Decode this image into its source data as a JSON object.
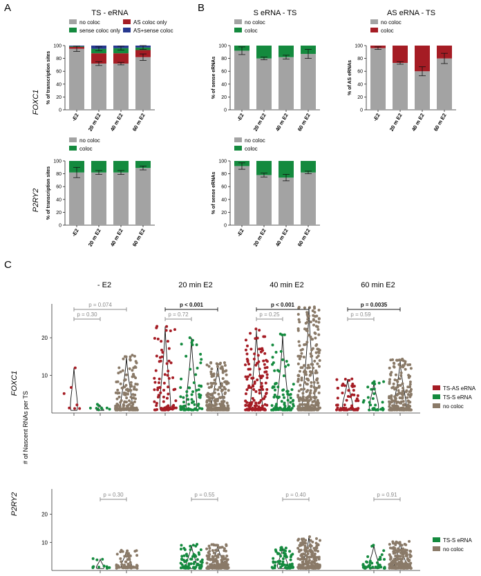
{
  "panel_letters": {
    "a": "A",
    "b": "B",
    "c": "C"
  },
  "gene_labels": {
    "foxc1": "FOXC1",
    "p2ry2": "P2RY2"
  },
  "colors": {
    "no_coloc": "#a3a3a3",
    "as_coloc": "#a51c24",
    "sense_coloc": "#148a3e",
    "as_sense_coloc": "#26388f",
    "c_no_coloc": "#8a7a68"
  },
  "chart_data": [
    {
      "id": "a1",
      "type": "bar",
      "stacked": true,
      "title": "TS - eRNA",
      "categories": [
        "-E2",
        "20 m E2",
        "40 m E2",
        "60 m E2"
      ],
      "ylabel": "% of transcription sites",
      "ylim": [
        0,
        100
      ],
      "yticks": [
        0,
        20,
        40,
        60,
        80,
        100
      ],
      "legend": [
        "no coloc",
        "AS coloc only",
        "sense coloc only",
        "AS+sense coloc"
      ],
      "series": [
        {
          "name": "no coloc",
          "color": "#a3a3a3",
          "values": [
            95,
            72,
            72,
            82
          ],
          "err": [
            4,
            3,
            2,
            5
          ]
        },
        {
          "name": "AS coloc only",
          "color": "#a51c24",
          "values": [
            3,
            16,
            16,
            11
          ],
          "err": [
            null,
            null,
            null,
            null
          ]
        },
        {
          "name": "sense coloc only",
          "color": "#148a3e",
          "values": [
            1,
            7,
            8,
            4
          ],
          "err": [
            null,
            3,
            3,
            3
          ]
        },
        {
          "name": "AS+sense coloc",
          "color": "#26388f",
          "values": [
            1,
            5,
            4,
            3
          ],
          "err": [
            null,
            null,
            null,
            null
          ]
        }
      ]
    },
    {
      "id": "a2",
      "type": "bar",
      "stacked": true,
      "title": "",
      "categories": [
        "-E2",
        "20 m E2",
        "40 m E2",
        "60 m E2"
      ],
      "ylabel": "% of transcription sites",
      "ylim": [
        0,
        100
      ],
      "yticks": [
        0,
        20,
        40,
        60,
        80,
        100
      ],
      "legend": [
        "no coloc",
        "coloc"
      ],
      "series": [
        {
          "name": "no coloc",
          "color": "#a3a3a3",
          "values": [
            82,
            82,
            82,
            89
          ],
          "err": [
            8,
            3,
            3,
            3
          ]
        },
        {
          "name": "coloc",
          "color": "#148a3e",
          "values": [
            18,
            18,
            18,
            11
          ],
          "err": [
            null,
            null,
            null,
            null
          ]
        }
      ]
    },
    {
      "id": "b1",
      "type": "bar",
      "stacked": true,
      "title": "S eRNA -  TS",
      "categories": [
        "-E2",
        "20 m E2",
        "40 m E2",
        "60 m E2"
      ],
      "ylabel": "% of sense eRNAs",
      "ylim": [
        0,
        100
      ],
      "yticks": [
        0,
        20,
        40,
        60,
        80,
        100
      ],
      "legend": [
        "no coloc",
        "coloc"
      ],
      "series": [
        {
          "name": "no coloc",
          "color": "#a3a3a3",
          "values": [
            92,
            80,
            82,
            87
          ],
          "err": [
            6,
            2,
            3,
            7
          ]
        },
        {
          "name": "coloc",
          "color": "#148a3e",
          "values": [
            8,
            20,
            18,
            13
          ],
          "err": [
            null,
            null,
            null,
            null
          ]
        }
      ]
    },
    {
      "id": "b2",
      "type": "bar",
      "stacked": true,
      "title": "AS eRNA -  TS",
      "categories": [
        "-E2",
        "20 m E2",
        "40 m E2",
        "60 m E2"
      ],
      "ylabel": "% of AS eRNAs",
      "ylim": [
        0,
        100
      ],
      "yticks": [
        0,
        20,
        40,
        60,
        80,
        100
      ],
      "legend": [
        "no coloc",
        "coloc"
      ],
      "series": [
        {
          "name": "no coloc",
          "color": "#a3a3a3",
          "values": [
            96,
            73,
            60,
            80
          ],
          "err": [
            2,
            2,
            7,
            8
          ]
        },
        {
          "name": "coloc",
          "color": "#a51c24",
          "values": [
            4,
            27,
            40,
            20
          ],
          "err": [
            null,
            null,
            null,
            null
          ]
        }
      ]
    },
    {
      "id": "b3",
      "type": "bar",
      "stacked": true,
      "title": "",
      "categories": [
        "-E2",
        "20 m E2",
        "40 m E2",
        "60 m E2"
      ],
      "ylabel": "% of sense eRNAs",
      "ylim": [
        0,
        100
      ],
      "yticks": [
        0,
        20,
        40,
        60,
        80,
        100
      ],
      "legend": [
        "no coloc",
        "coloc"
      ],
      "series": [
        {
          "name": "no coloc",
          "color": "#a3a3a3",
          "values": [
            92,
            78,
            74,
            82
          ],
          "err": [
            5,
            3,
            5,
            2
          ]
        },
        {
          "name": "coloc",
          "color": "#148a3e",
          "values": [
            8,
            22,
            26,
            18
          ],
          "err": [
            null,
            null,
            null,
            null
          ]
        }
      ]
    },
    {
      "id": "c1",
      "type": "scatter",
      "gene": "FOXC1",
      "ylabel": "# of Nascent RNAs per TS",
      "ylim": [
        0,
        29
      ],
      "yticks": [
        10,
        20
      ],
      "group_titles": [
        "- E2",
        "20 min E2",
        "40 min E2",
        "60 min E2"
      ],
      "legend": [
        "TS-AS eRNA",
        "TS-S eRNA",
        "no coloc"
      ],
      "groups": [
        {
          "n": [
            6,
            8,
            150
          ],
          "max": [
            12,
            2,
            15
          ],
          "pvalues": [
            {
              "text": "p = 0.30",
              "bold": false,
              "pair": [
                0,
                1
              ],
              "level": 1
            },
            {
              "text": "p = 0.074",
              "bold": false,
              "pair": [
                0,
                2
              ],
              "level": 2
            }
          ]
        },
        {
          "n": [
            80,
            70,
            220
          ],
          "max": [
            23,
            20,
            13
          ],
          "pvalues": [
            {
              "text": "p = 0.72",
              "bold": false,
              "pair": [
                0,
                1
              ],
              "level": 1
            },
            {
              "text": "p < 0.001",
              "bold": true,
              "pair": [
                0,
                2
              ],
              "level": 2
            }
          ]
        },
        {
          "n": [
            140,
            90,
            300
          ],
          "max": [
            22,
            21,
            28
          ],
          "pvalues": [
            {
              "text": "p = 0.25",
              "bold": false,
              "pair": [
                0,
                1
              ],
              "level": 1
            },
            {
              "text": "p < 0.001",
              "bold": true,
              "pair": [
                0,
                2
              ],
              "level": 2
            }
          ]
        },
        {
          "n": [
            60,
            30,
            220
          ],
          "max": [
            9,
            8,
            14
          ],
          "pvalues": [
            {
              "text": "p = 0.59",
              "bold": false,
              "pair": [
                0,
                1
              ],
              "level": 1
            },
            {
              "text": "p = 0.0035",
              "bold": true,
              "pair": [
                0,
                2
              ],
              "level": 2
            }
          ]
        }
      ]
    },
    {
      "id": "c2",
      "type": "scatter",
      "gene": "P2RY2",
      "ylim": [
        0,
        29
      ],
      "yticks": [
        10,
        20
      ],
      "legend": [
        "TS-S eRNA",
        "no coloc"
      ],
      "groups": [
        {
          "n": [
            10,
            70
          ],
          "max": [
            4,
            7
          ],
          "pvalues": [
            {
              "text": "p = 0.30",
              "bold": false,
              "pair": [
                0,
                1
              ],
              "level": 1
            }
          ]
        },
        {
          "n": [
            70,
            200
          ],
          "max": [
            9,
            9
          ],
          "pvalues": [
            {
              "text": "p = 0.55",
              "bold": false,
              "pair": [
                0,
                1
              ],
              "level": 1
            }
          ]
        },
        {
          "n": [
            60,
            220
          ],
          "max": [
            8,
            12
          ],
          "pvalues": [
            {
              "text": "p = 0.40",
              "bold": false,
              "pair": [
                0,
                1
              ],
              "level": 1
            }
          ]
        },
        {
          "n": [
            40,
            220
          ],
          "max": [
            9,
            10
          ],
          "pvalues": [
            {
              "text": "p = 0.91",
              "bold": false,
              "pair": [
                0,
                1
              ],
              "level": 1
            }
          ]
        }
      ]
    }
  ]
}
